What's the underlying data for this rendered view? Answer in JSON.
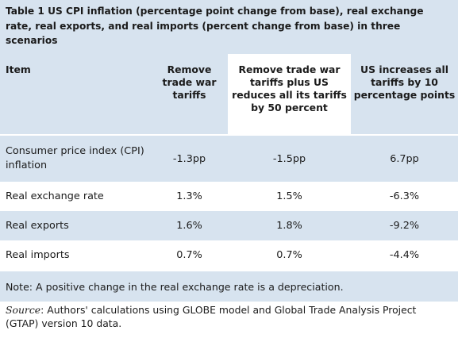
{
  "title": "Table 1 US CPI inflation (percentage point change from base), real exchange rate, real exports, and real imports (percent change from base) in three scenarios",
  "table": {
    "headers": [
      "Item",
      "Remove trade war tariffs",
      "Remove trade war tariffs plus US reduces all its tariffs by 50 percent",
      "US increases all tariffs by 10 percentage points"
    ],
    "rows": [
      {
        "item": "Consumer price index (CPI) inflation",
        "s1": "-1.3pp",
        "s2": "-1.5pp",
        "s3": "6.7pp"
      },
      {
        "item": "Real exchange rate",
        "s1": "1.3%",
        "s2": "1.5%",
        "s3": "-6.3%"
      },
      {
        "item": "Real exports",
        "s1": "1.6%",
        "s2": "1.8%",
        "s3": "-9.2%"
      },
      {
        "item": "Real imports",
        "s1": "0.7%",
        "s2": "0.7%",
        "s3": "-4.4%"
      }
    ],
    "note": "Note: A positive change in the real exchange rate is a depreciation."
  },
  "source": {
    "label": "Source",
    "text": ": Authors' calculations using GLOBE model and Global Trade Analysis Project (GTAP) version 10 data."
  },
  "colors": {
    "shade": "#d7e3ef",
    "white": "#ffffff"
  }
}
